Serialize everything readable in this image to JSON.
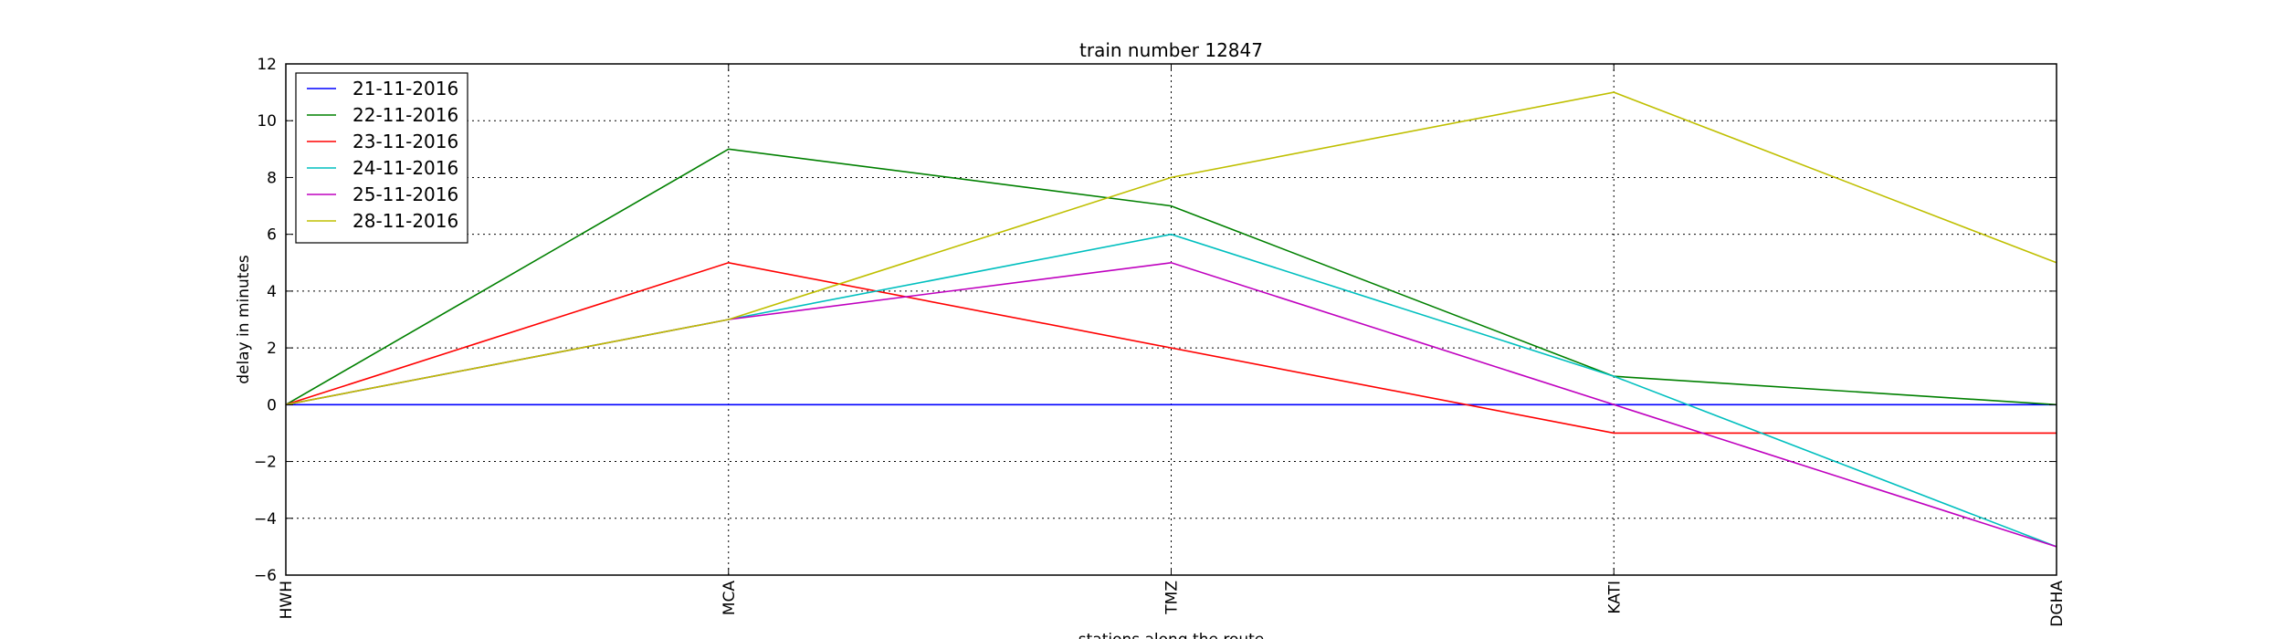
{
  "chart_data": {
    "type": "line",
    "title": "train number 12847",
    "xlabel": "stations along the route",
    "ylabel": "delay in minutes",
    "categories": [
      "HWH",
      "MCA",
      "TMZ",
      "KATI",
      "DGHA"
    ],
    "ylim": [
      -6,
      12
    ],
    "yticks": [
      -6,
      -4,
      -2,
      0,
      2,
      4,
      6,
      8,
      10,
      12
    ],
    "grid": true,
    "legend_position": "top-left",
    "series": [
      {
        "name": "21-11-2016",
        "color": "#0000ff",
        "values": [
          0,
          0,
          0,
          0,
          0
        ]
      },
      {
        "name": "22-11-2016",
        "color": "#008000",
        "values": [
          0,
          9,
          7,
          1,
          0
        ]
      },
      {
        "name": "23-11-2016",
        "color": "#ff0000",
        "values": [
          0,
          5,
          2,
          -1,
          -1
        ]
      },
      {
        "name": "24-11-2016",
        "color": "#00bfbf",
        "values": [
          0,
          3,
          6,
          1,
          -5
        ]
      },
      {
        "name": "25-11-2016",
        "color": "#bf00bf",
        "values": [
          0,
          3,
          5,
          0,
          -5
        ]
      },
      {
        "name": "28-11-2016",
        "color": "#bfbf00",
        "values": [
          0,
          3,
          8,
          11,
          5
        ]
      }
    ]
  }
}
